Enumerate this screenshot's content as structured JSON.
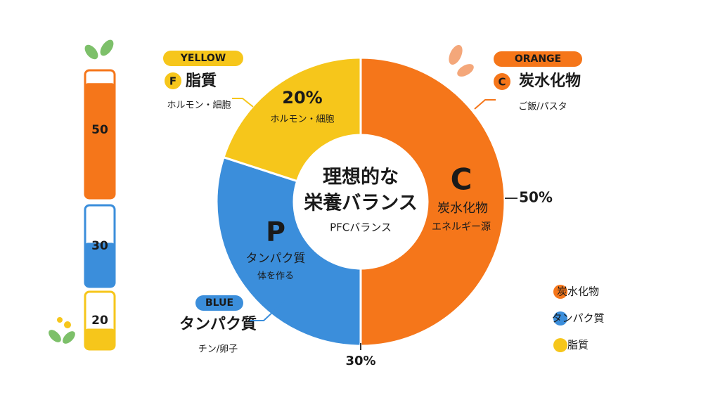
{
  "chart_data": {
    "type": "donut",
    "title_lines": [
      "理想的な",
      "栄養バランス"
    ],
    "subtitle": "PFCバランス",
    "categories": [
      "炭水化物",
      "タンパク質",
      "脂質"
    ],
    "values": [
      50,
      30,
      20
    ],
    "value_labels": [
      "50%",
      "30%",
      "20%"
    ],
    "colors": [
      "#f5761a",
      "#3b8edb",
      "#f6c61b"
    ],
    "letters": [
      "C",
      "P",
      "F"
    ],
    "descriptions": [
      "エネルギー源",
      "体を作る",
      "ホルモン・細胞"
    ],
    "tags": [
      "ORANGE",
      "BLUE",
      "YELLOW"
    ],
    "examples": [
      "ご飯/パスタ",
      "チン/卵子",
      "ホルモン・細胞"
    ]
  }
}
